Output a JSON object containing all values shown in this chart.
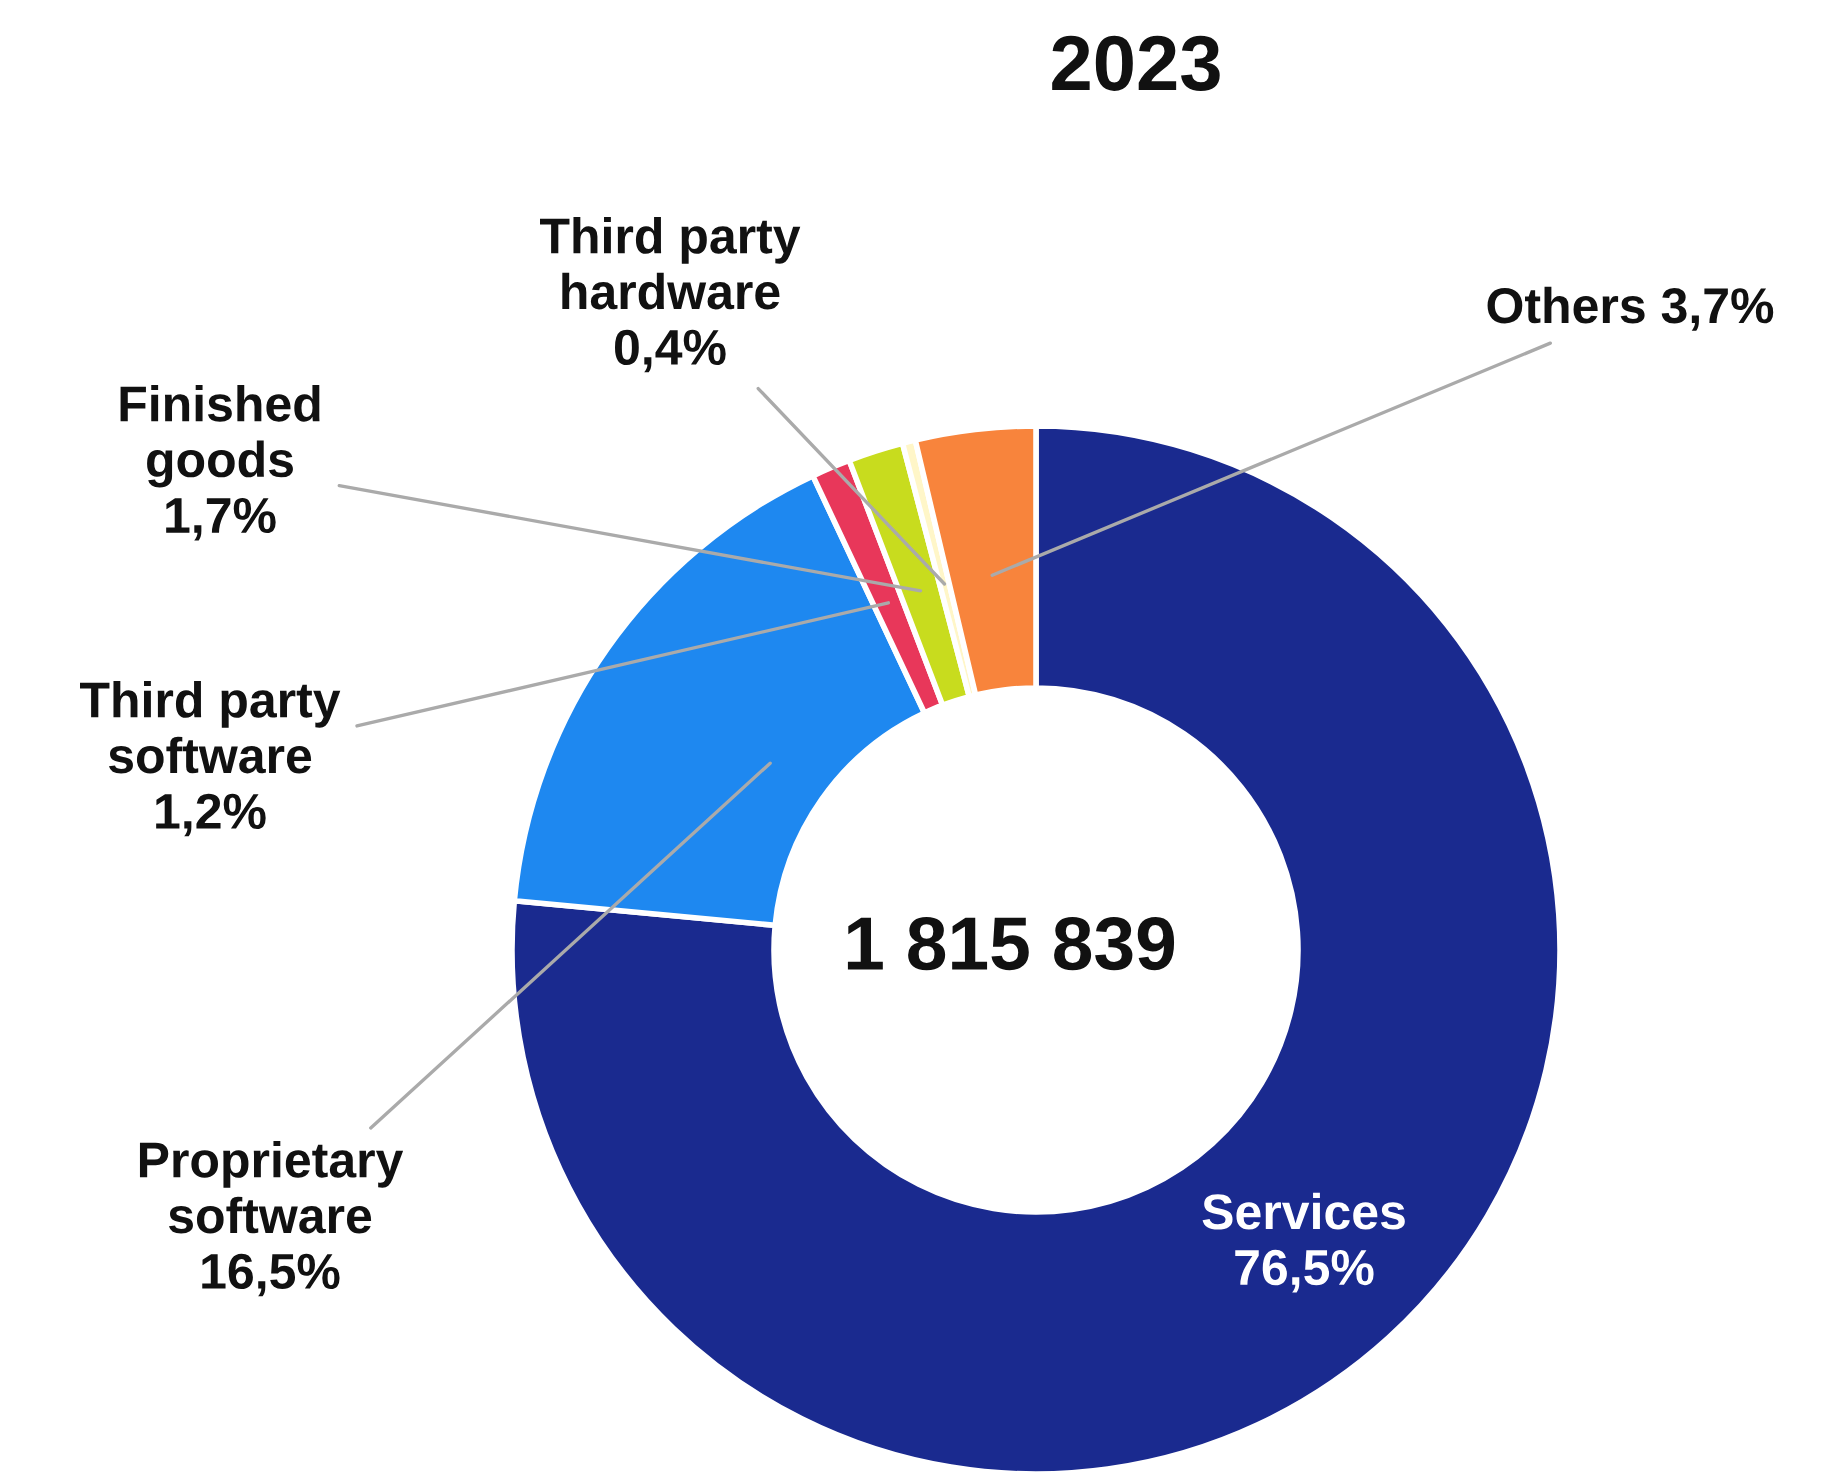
{
  "chart_data": {
    "type": "donut",
    "title": "2023",
    "categories": [
      "Services",
      "Proprietary software",
      "Third party software",
      "Finished goods",
      "Third party hardware",
      "Others"
    ],
    "values": [
      76.5,
      16.5,
      1.2,
      1.7,
      0.4,
      3.7
    ],
    "colors": [
      "#1a2a8f",
      "#1e88f0",
      "#e8375a",
      "#c8dc1e",
      "#fff6c8",
      "#f8843c"
    ],
    "value_labels": [
      "76,5%",
      "16,5%",
      "1,2%",
      "1,7%",
      "0,4%",
      "3,7%"
    ],
    "annotations": [
      "1 815 839"
    ]
  }
}
